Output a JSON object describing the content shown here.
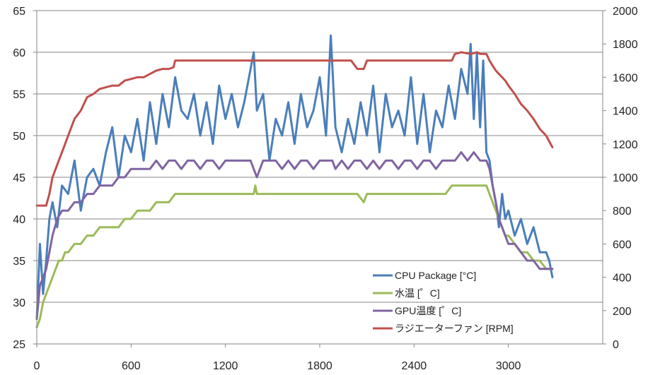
{
  "chart_data": {
    "type": "line",
    "title": "",
    "x_ticks": [
      "0",
      "600",
      "1200",
      "1800",
      "2400",
      "3000"
    ],
    "x_tick_values": [
      0,
      600,
      1200,
      1800,
      2400,
      3000
    ],
    "xlim": [
      0,
      3600
    ],
    "y_left_ticks": [
      "25",
      "30",
      "35",
      "40",
      "45",
      "50",
      "55",
      "60",
      "65"
    ],
    "y_left_tick_values": [
      25,
      30,
      35,
      40,
      45,
      50,
      55,
      60,
      65
    ],
    "ylim_left": [
      25,
      65
    ],
    "y_right_ticks": [
      "0",
      "200",
      "400",
      "600",
      "800",
      "1000",
      "1200",
      "1400",
      "1600",
      "1800",
      "2000"
    ],
    "y_right_tick_values": [
      0,
      200,
      400,
      600,
      800,
      1000,
      1200,
      1400,
      1600,
      1800,
      2000
    ],
    "ylim_right": [
      0,
      2000
    ],
    "grid": true,
    "legend_position": "bottom-right",
    "series": [
      {
        "name": "CPU Package [°C]",
        "axis": "left",
        "color": "#4A7EBB",
        "x": [
          0,
          20,
          40,
          60,
          80,
          100,
          130,
          160,
          200,
          240,
          280,
          320,
          360,
          400,
          440,
          480,
          520,
          560,
          600,
          640,
          680,
          720,
          760,
          800,
          840,
          880,
          920,
          960,
          1000,
          1040,
          1080,
          1120,
          1160,
          1200,
          1240,
          1280,
          1320,
          1360,
          1380,
          1400,
          1440,
          1480,
          1520,
          1560,
          1600,
          1640,
          1680,
          1720,
          1760,
          1800,
          1840,
          1870,
          1900,
          1940,
          1980,
          2020,
          2060,
          2100,
          2140,
          2180,
          2220,
          2260,
          2300,
          2340,
          2380,
          2420,
          2460,
          2500,
          2540,
          2580,
          2620,
          2660,
          2700,
          2740,
          2760,
          2780,
          2800,
          2820,
          2840,
          2860,
          2880,
          2900,
          2920,
          2940,
          2960,
          2980,
          3000,
          3040,
          3080,
          3120,
          3160,
          3200,
          3240,
          3260,
          3280
        ],
        "values": [
          28,
          37,
          31,
          35,
          40,
          42,
          39,
          44,
          43,
          47,
          41,
          45,
          46,
          44,
          48,
          51,
          45,
          50,
          48,
          52,
          47,
          54,
          49,
          55,
          51,
          57,
          53,
          52,
          55,
          50,
          54,
          49,
          56,
          52,
          55,
          51,
          54,
          58,
          60,
          53,
          55,
          47,
          52,
          50,
          54,
          49,
          55,
          51,
          53,
          57,
          50,
          62,
          51,
          48,
          52,
          49,
          54,
          50,
          56,
          48,
          55,
          51,
          53,
          50,
          57,
          49,
          55,
          48,
          53,
          51,
          56,
          52,
          58,
          55,
          61,
          52,
          60,
          51,
          59,
          48,
          47,
          44,
          42,
          39,
          43,
          40,
          41,
          38,
          40,
          37,
          39,
          36,
          36,
          35,
          33
        ]
      },
      {
        "name": "水温 [゜C]",
        "axis": "left",
        "color": "#9BBB59",
        "x": [
          0,
          20,
          40,
          60,
          80,
          100,
          120,
          140,
          160,
          180,
          200,
          240,
          280,
          320,
          360,
          400,
          440,
          480,
          520,
          560,
          600,
          640,
          680,
          720,
          760,
          800,
          840,
          880,
          1000,
          1200,
          1380,
          1390,
          1400,
          1500,
          1700,
          1880,
          1890,
          1900,
          1920,
          1940,
          2000,
          2040,
          2080,
          2100,
          2200,
          2400,
          2600,
          2640,
          2680,
          2700,
          2800,
          2860,
          2880,
          2900,
          2920,
          2940,
          2960,
          2980,
          3000,
          3040,
          3080,
          3120,
          3160,
          3200,
          3240,
          3280
        ],
        "values": [
          27,
          28,
          30,
          31,
          32,
          33,
          34,
          35,
          35,
          36,
          36,
          37,
          37,
          38,
          38,
          39,
          39,
          39,
          39,
          40,
          40,
          41,
          41,
          41,
          42,
          42,
          42,
          43,
          43,
          43,
          43,
          44,
          43,
          43,
          43,
          43,
          43,
          43,
          43,
          43,
          43,
          43,
          42,
          43,
          43,
          43,
          43,
          44,
          44,
          44,
          44,
          44,
          43,
          42,
          41,
          40,
          39,
          38,
          38,
          37,
          36,
          36,
          35,
          35,
          34,
          34
        ]
      },
      {
        "name": "GPU温度 [゜C]",
        "axis": "left",
        "color": "#8064A2",
        "x": [
          0,
          20,
          40,
          60,
          80,
          100,
          130,
          160,
          200,
          240,
          280,
          320,
          360,
          400,
          440,
          480,
          520,
          560,
          600,
          640,
          680,
          720,
          760,
          800,
          840,
          880,
          920,
          960,
          1000,
          1040,
          1080,
          1120,
          1160,
          1200,
          1240,
          1280,
          1320,
          1360,
          1400,
          1440,
          1480,
          1520,
          1560,
          1600,
          1640,
          1680,
          1720,
          1760,
          1800,
          1840,
          1880,
          1900,
          1940,
          1980,
          2020,
          2060,
          2100,
          2140,
          2180,
          2220,
          2260,
          2300,
          2340,
          2380,
          2420,
          2460,
          2500,
          2540,
          2580,
          2620,
          2660,
          2700,
          2740,
          2780,
          2820,
          2860,
          2880,
          2900,
          2920,
          2940,
          2960,
          2980,
          3000,
          3040,
          3080,
          3120,
          3160,
          3200,
          3240,
          3280
        ],
        "values": [
          28,
          32,
          33,
          34,
          36,
          38,
          40,
          41,
          41,
          42,
          42,
          43,
          43,
          44,
          44,
          44,
          45,
          45,
          46,
          46,
          46,
          46,
          47,
          46,
          47,
          47,
          46,
          47,
          47,
          46,
          47,
          47,
          46,
          47,
          47,
          47,
          47,
          47,
          45,
          47,
          47,
          47,
          46,
          47,
          46,
          47,
          47,
          46,
          47,
          47,
          47,
          46,
          47,
          46,
          47,
          47,
          46,
          47,
          46,
          47,
          47,
          46,
          47,
          47,
          46,
          47,
          47,
          46,
          47,
          47,
          47,
          48,
          47,
          48,
          47,
          47,
          46,
          44,
          42,
          40,
          39,
          38,
          37,
          37,
          36,
          35,
          35,
          34,
          34,
          34
        ]
      },
      {
        "name": "ラジエーターファン [RPM]",
        "axis": "right",
        "color": "#C0504D",
        "x": [
          0,
          20,
          40,
          60,
          80,
          100,
          120,
          140,
          160,
          180,
          200,
          240,
          280,
          320,
          360,
          400,
          440,
          480,
          520,
          560,
          600,
          640,
          680,
          720,
          760,
          800,
          840,
          870,
          880,
          1000,
          1200,
          1400,
          1600,
          1800,
          1900,
          2000,
          2040,
          2080,
          2100,
          2200,
          2400,
          2600,
          2640,
          2660,
          2700,
          2760,
          2800,
          2820,
          2860,
          2880,
          2900,
          2920,
          2940,
          2960,
          2980,
          3000,
          3040,
          3080,
          3120,
          3160,
          3200,
          3240,
          3280
        ],
        "values": [
          830,
          830,
          830,
          830,
          900,
          1000,
          1050,
          1100,
          1150,
          1200,
          1250,
          1350,
          1400,
          1480,
          1500,
          1530,
          1540,
          1550,
          1550,
          1580,
          1590,
          1600,
          1600,
          1620,
          1640,
          1650,
          1650,
          1660,
          1700,
          1700,
          1700,
          1700,
          1700,
          1700,
          1700,
          1700,
          1650,
          1650,
          1700,
          1700,
          1700,
          1700,
          1700,
          1740,
          1750,
          1740,
          1750,
          1740,
          1740,
          1700,
          1670,
          1640,
          1620,
          1600,
          1580,
          1550,
          1500,
          1440,
          1400,
          1350,
          1290,
          1250,
          1180
        ]
      }
    ]
  }
}
